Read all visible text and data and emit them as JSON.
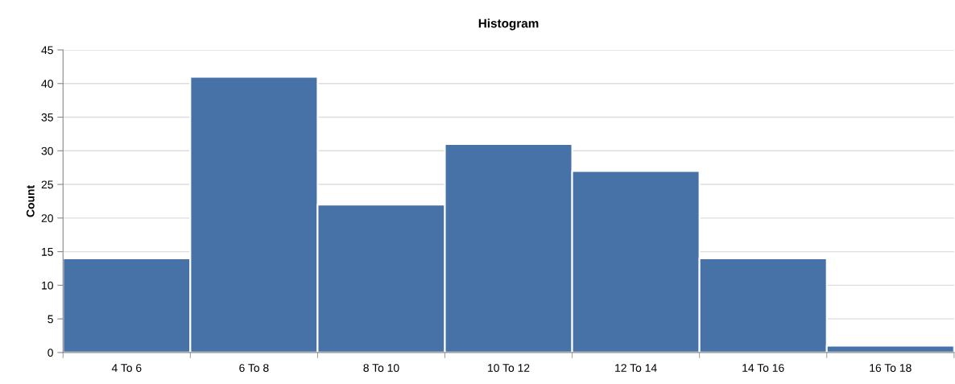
{
  "chart_data": {
    "type": "bar",
    "title": "Histogram",
    "ylabel": "Count",
    "categories": [
      "4 To 6",
      "6 To 8",
      "8 To 10",
      "10 To 12",
      "12 To 14",
      "14 To 16",
      "16 To 18"
    ],
    "values": [
      14,
      41,
      22,
      31,
      27,
      14,
      1
    ],
    "color": "#4672a8",
    "ylim": [
      0,
      45
    ],
    "yticks": [
      0,
      5,
      10,
      15,
      20,
      25,
      30,
      35,
      40,
      45
    ],
    "grid": "y",
    "legend": false
  }
}
